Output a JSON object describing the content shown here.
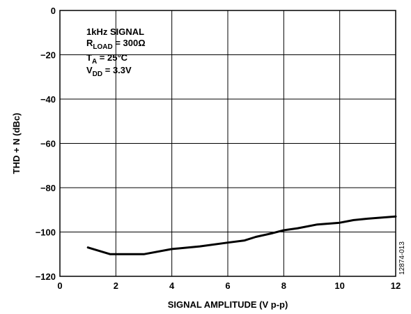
{
  "chart_data": {
    "type": "line",
    "title": "",
    "xlabel": "SIGNAL AMPLITUDE (V p-p)",
    "ylabel": "THD + N (dBc)",
    "xlim": [
      0,
      12
    ],
    "ylim": [
      -120,
      0
    ],
    "x_ticks": [
      "0",
      "2",
      "4",
      "6",
      "8",
      "10",
      "12"
    ],
    "y_ticks": [
      "0",
      "−20",
      "−40",
      "−60",
      "−80",
      "−100",
      "−120"
    ],
    "grid": true,
    "annotations": {
      "line1": "1kHz SIGNAL",
      "line2_main": "R",
      "line2_sub": "LOAD",
      "line2_rest": " = 300Ω",
      "line3_main": "T",
      "line3_sub": "A",
      "line3_rest": " = 25°C",
      "line4_main": "V",
      "line4_sub": "DD",
      "line4_rest": " = 3.3V"
    },
    "figure_id": "12874-013",
    "series": [
      {
        "x": [
          1.0,
          1.8,
          3.0,
          4.0,
          5.0,
          6.0,
          6.6,
          7.0,
          7.6,
          8.0,
          8.5,
          9.2,
          10.0,
          10.5,
          11.0,
          12.0
        ],
        "y": [
          -107,
          -110,
          -110,
          -107.7,
          -106.5,
          -104.8,
          -103.8,
          -102.2,
          -100.5,
          -99.2,
          -98.3,
          -96.6,
          -95.8,
          -94.6,
          -94,
          -93
        ]
      }
    ]
  }
}
